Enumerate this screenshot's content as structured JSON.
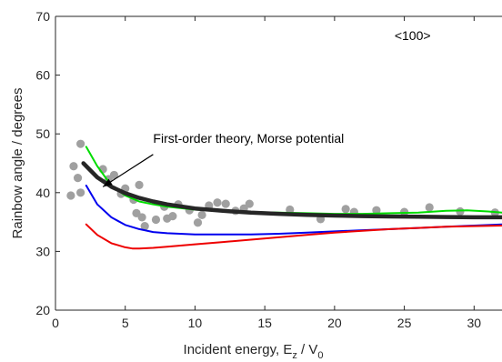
{
  "chart_data": {
    "type": "scatter",
    "title": "",
    "xlabel": "Incident energy, E",
    "xlabel_sub": "z",
    "xlabel_tail": " / V",
    "xlabel_sub2": "0",
    "ylabel": "Rainbow angle / degrees",
    "xlim": [
      0,
      32
    ],
    "ylim": [
      20,
      70
    ],
    "xticks": [
      0,
      5,
      10,
      15,
      20,
      25,
      30
    ],
    "yticks": [
      20,
      30,
      40,
      50,
      60,
      70
    ],
    "grid": false,
    "legend": "none",
    "annotations": [
      {
        "text": "<100>",
        "x": 24.3,
        "y": 66
      },
      {
        "text": "First-order theory, Morse potential",
        "x": 7,
        "y": 48.5
      }
    ],
    "arrow": {
      "from": [
        7,
        46.5
      ],
      "to": [
        3.4,
        41
      ]
    },
    "series": [
      {
        "kind": "scatter",
        "color": "#a0a0a0",
        "points": [
          [
            1.1,
            39.5
          ],
          [
            1.3,
            44.5
          ],
          [
            1.6,
            42.5
          ],
          [
            1.8,
            48.3
          ],
          [
            1.8,
            40.0
          ],
          [
            3.4,
            44.0
          ],
          [
            3.8,
            42.3
          ],
          [
            4.2,
            43.0
          ],
          [
            4.7,
            39.8
          ],
          [
            5.0,
            40.7
          ],
          [
            5.6,
            38.8
          ],
          [
            5.8,
            36.5
          ],
          [
            6.0,
            41.3
          ],
          [
            6.2,
            35.8
          ],
          [
            6.4,
            34.3
          ],
          [
            7.2,
            35.4
          ],
          [
            7.8,
            37.6
          ],
          [
            8.0,
            35.6
          ],
          [
            8.4,
            36.0
          ],
          [
            8.8,
            38.0
          ],
          [
            9.6,
            37.0
          ],
          [
            10.2,
            34.9
          ],
          [
            10.5,
            36.2
          ],
          [
            11.0,
            37.8
          ],
          [
            11.6,
            38.3
          ],
          [
            12.2,
            38.1
          ],
          [
            12.9,
            36.9
          ],
          [
            13.5,
            37.3
          ],
          [
            13.9,
            38.1
          ],
          [
            16.8,
            37.1
          ],
          [
            19.0,
            35.5
          ],
          [
            20.8,
            37.2
          ],
          [
            21.4,
            36.7
          ],
          [
            23.0,
            37.0
          ],
          [
            25.0,
            36.7
          ],
          [
            26.8,
            37.5
          ],
          [
            29.0,
            36.8
          ],
          [
            31.5,
            36.6
          ]
        ]
      },
      {
        "kind": "line",
        "color": "#00dd00",
        "width": 2,
        "x": [
          2.2,
          3,
          4,
          5,
          6,
          7,
          8,
          10,
          12,
          14,
          16,
          18,
          20,
          22,
          24,
          26,
          28,
          29.5,
          31,
          32
        ],
        "y": [
          47.8,
          44.5,
          41.2,
          39.5,
          38.5,
          38.0,
          37.6,
          37.1,
          36.9,
          36.7,
          36.6,
          36.5,
          36.4,
          36.4,
          36.5,
          36.6,
          36.9,
          37.0,
          36.8,
          36.6
        ]
      },
      {
        "kind": "line",
        "color": "#0000ee",
        "width": 2,
        "x": [
          2.2,
          3,
          4,
          5,
          6,
          7,
          8,
          10,
          12,
          14,
          16,
          18,
          20,
          22,
          24,
          26,
          28,
          30,
          32
        ],
        "y": [
          41.2,
          38.0,
          35.8,
          34.5,
          33.8,
          33.3,
          33.1,
          32.9,
          32.9,
          32.9,
          33.0,
          33.2,
          33.4,
          33.6,
          33.8,
          34.0,
          34.2,
          34.4,
          34.6
        ]
      },
      {
        "kind": "line",
        "color": "#ee0000",
        "width": 2,
        "x": [
          2.2,
          3,
          4,
          5,
          5.5,
          6,
          7,
          8,
          10,
          12,
          14,
          16,
          18,
          20,
          22,
          24,
          26,
          28,
          30,
          32
        ],
        "y": [
          34.6,
          32.8,
          31.4,
          30.7,
          30.5,
          30.5,
          30.6,
          30.8,
          31.2,
          31.6,
          32.0,
          32.4,
          32.8,
          33.2,
          33.5,
          33.8,
          34.0,
          34.2,
          34.3,
          34.4
        ]
      },
      {
        "kind": "line",
        "color": "#262626",
        "width": 4.5,
        "x": [
          2.0,
          3,
          4,
          5,
          6,
          7,
          8,
          10,
          12,
          14,
          16,
          18,
          20,
          22,
          24,
          26,
          28,
          30,
          32
        ],
        "y": [
          45.0,
          42.6,
          41.0,
          39.9,
          39.1,
          38.5,
          38.0,
          37.3,
          36.9,
          36.6,
          36.4,
          36.2,
          36.1,
          36.0,
          35.95,
          35.9,
          35.85,
          35.8,
          35.8
        ]
      }
    ]
  }
}
